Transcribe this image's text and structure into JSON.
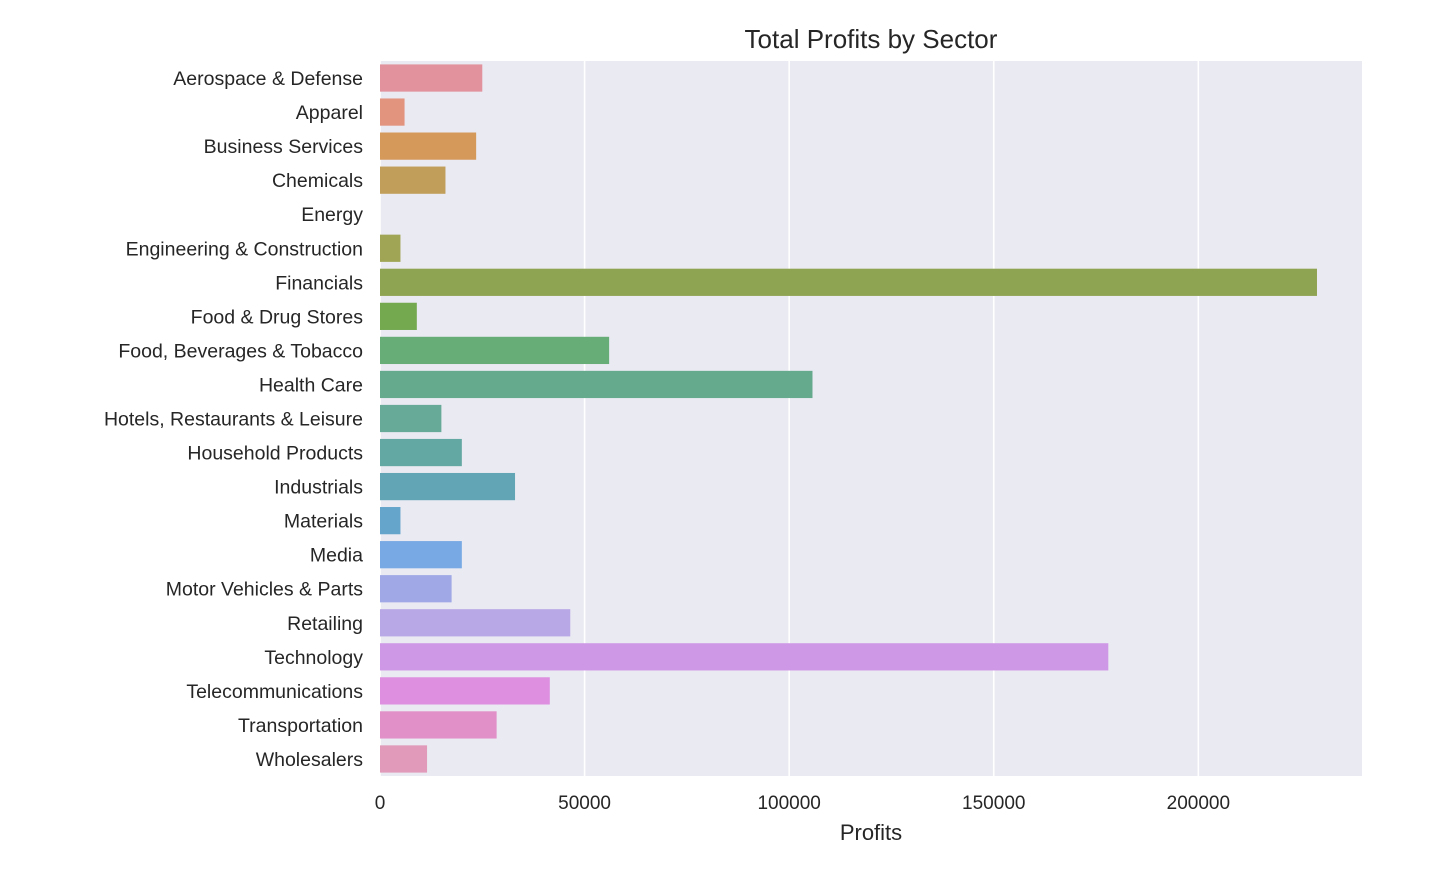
{
  "chart_data": {
    "type": "bar",
    "orientation": "horizontal",
    "title": "Total Profits by Sector",
    "xlabel": "Profits",
    "ylabel": "",
    "xlim": [
      0,
      240000
    ],
    "xticks": [
      0,
      50000,
      100000,
      150000,
      200000
    ],
    "grid": true,
    "categories": [
      "Aerospace & Defense",
      "Apparel",
      "Business Services",
      "Chemicals",
      "Energy",
      "Engineering & Construction",
      "Financials",
      "Food & Drug Stores",
      "Food, Beverages & Tobacco",
      "Health Care",
      "Hotels, Restaurants & Leisure",
      "Household Products",
      "Industrials",
      "Materials",
      "Media",
      "Motor Vehicles & Parts",
      "Retailing",
      "Technology",
      "Telecommunications",
      "Transportation",
      "Wholesalers"
    ],
    "values": [
      25000,
      6000,
      23500,
      16000,
      0,
      5000,
      229000,
      9000,
      56000,
      105700,
      15000,
      20000,
      33000,
      5000,
      20000,
      17500,
      46500,
      178000,
      41500,
      28500,
      11500
    ],
    "colors": [
      "#e1929c",
      "#e3947f",
      "#d59a5a",
      "#c19e5a",
      "#aea35a",
      "#a0a556",
      "#8fa452",
      "#74a950",
      "#67ad78",
      "#66aa8e",
      "#66aa97",
      "#63a8a2",
      "#62a6b6",
      "#66a5cb",
      "#78a9e4",
      "#a0a9e6",
      "#b9a8e6",
      "#cf98e6",
      "#de8fe0",
      "#e190c8",
      "#e19ab9"
    ]
  }
}
